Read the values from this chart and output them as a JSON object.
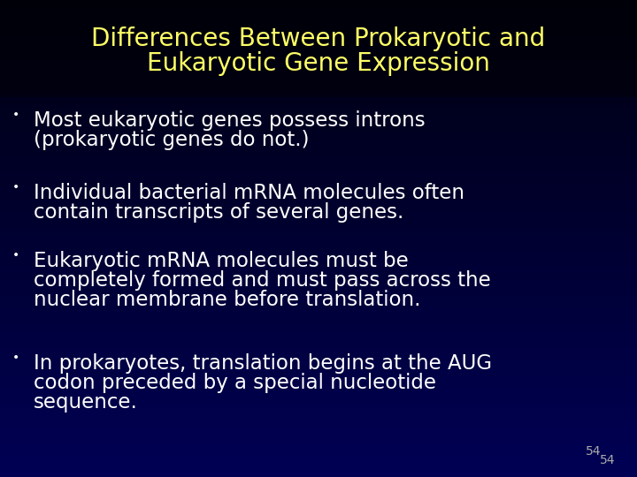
{
  "title_line1": "Differences Between Prokaryotic and",
  "title_line2": "Eukaryotic Gene Expression",
  "title_color": "#FFFF66",
  "title_fontsize": 20,
  "bg_top_color": "#000010",
  "bg_bottom_color": "#000060",
  "bullet_color": "#FFFFFF",
  "bullet_fontsize": 16.5,
  "bullet_dot_fontsize": 10,
  "page_number": "54",
  "page_number_color": "#AAAAAA",
  "page_number_fontsize": 10,
  "bullets": [
    "Most eukaryotic genes possess introns\n(prokaryotic genes do not.)",
    "Individual bacterial mRNA molecules often\ncontain transcripts of several genes.",
    "Eukaryotic mRNA molecules must be\ncompletely formed and must pass across the\nnuclear membrane before translation.",
    "In prokaryotes, translation begins at the AUG\ncodon preceded by a special nucleotide\nsequence."
  ]
}
